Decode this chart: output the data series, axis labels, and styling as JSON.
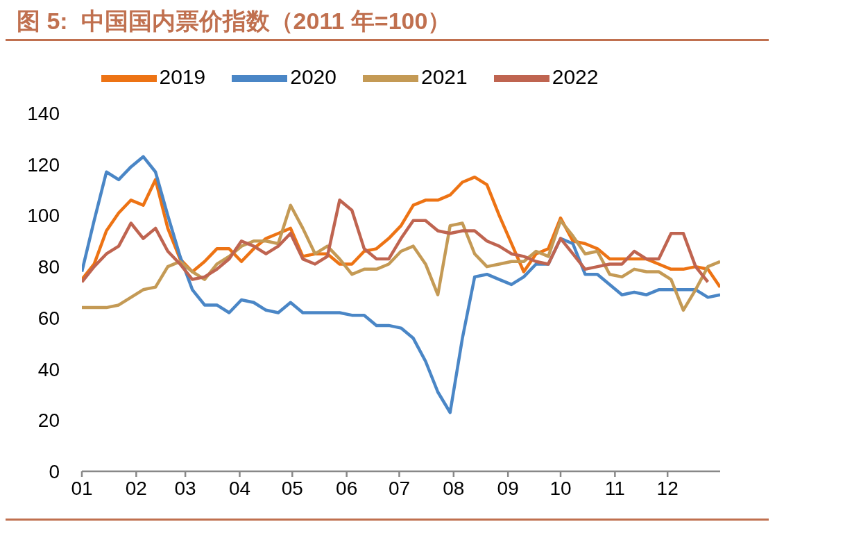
{
  "chart_data": {
    "type": "line",
    "title": "图 5:  中国国内票价指数（2011 年=100）",
    "x": [
      "--01-01",
      "--01-08",
      "--01-15",
      "--01-22",
      "--01-29",
      "--02-05",
      "--02-12",
      "--02-19",
      "--02-26",
      "--03-05",
      "--03-12",
      "--03-19",
      "--03-26",
      "--04-02",
      "--04-09",
      "--04-16",
      "--04-23",
      "--04-30",
      "--05-07",
      "--05-14",
      "--05-21",
      "--05-28",
      "--06-04",
      "--06-11",
      "--06-18",
      "--06-25",
      "--07-02",
      "--07-09",
      "--07-16",
      "--07-23",
      "--07-30",
      "--08-06",
      "--08-13",
      "--08-20",
      "--08-27",
      "--09-03",
      "--09-10",
      "--09-17",
      "--09-24",
      "--10-01",
      "--10-08",
      "--10-15",
      "--10-22",
      "--10-29",
      "--11-05",
      "--11-12",
      "--11-19",
      "--11-26",
      "--12-03",
      "--12-10",
      "--12-17",
      "--12-24",
      "--12-31"
    ],
    "series": [
      {
        "name": "2019",
        "color": "#ed7314",
        "values": [
          75,
          81,
          94,
          101,
          106,
          104,
          114,
          95,
          83,
          78,
          82,
          87,
          87,
          82,
          87,
          91,
          93,
          95,
          84,
          85,
          85,
          81,
          81,
          86,
          87,
          91,
          96,
          104,
          106,
          106,
          108,
          113,
          115,
          112,
          100,
          89,
          78,
          85,
          87,
          99,
          90,
          89,
          87,
          83,
          83,
          83,
          83,
          81,
          79,
          79,
          80,
          79,
          72
        ]
      },
      {
        "name": "2020",
        "color": "#4a86c6",
        "values": [
          78,
          98,
          117,
          114,
          119,
          123,
          117,
          100,
          84,
          71,
          65,
          65,
          62,
          67,
          66,
          63,
          62,
          66,
          62,
          62,
          62,
          62,
          61,
          61,
          57,
          57,
          56,
          52,
          43,
          31,
          23,
          52,
          76,
          77,
          75,
          73,
          76,
          81,
          81,
          91,
          89,
          77,
          77,
          73,
          69,
          70,
          69,
          71,
          71,
          71,
          71,
          68,
          69
        ]
      },
      {
        "name": "2021",
        "color": "#c49a55",
        "values": [
          64,
          64,
          64,
          65,
          68,
          71,
          72,
          80,
          82,
          78,
          75,
          81,
          84,
          88,
          90,
          90,
          89,
          104,
          95,
          85,
          88,
          83,
          77,
          79,
          79,
          81,
          86,
          88,
          81,
          69,
          96,
          97,
          85,
          80,
          81,
          82,
          82,
          86,
          84,
          98,
          92,
          85,
          86,
          77,
          76,
          79,
          78,
          78,
          75,
          63,
          71,
          80,
          82
        ]
      },
      {
        "name": "2022",
        "color": "#bf6450",
        "values": [
          74,
          80,
          85,
          88,
          97,
          91,
          95,
          86,
          81,
          75,
          76,
          79,
          83,
          90,
          88,
          85,
          88,
          93,
          83,
          81,
          84,
          106,
          102,
          87,
          83,
          83,
          91,
          98,
          98,
          94,
          93,
          94,
          94,
          90,
          88,
          85,
          84,
          82,
          81,
          91,
          85,
          79,
          80,
          81,
          81,
          86,
          83,
          83,
          93,
          93,
          80,
          74,
          null
        ]
      }
    ],
    "xlim": [
      "--01-01",
      "--12-31"
    ],
    "xticks": [
      {
        "value": "--01-01",
        "label": "01"
      },
      {
        "value": "--02-01",
        "label": "02"
      },
      {
        "value": "--03-01",
        "label": "03"
      },
      {
        "value": "--04-01",
        "label": "04"
      },
      {
        "value": "--05-01",
        "label": "05"
      },
      {
        "value": "--06-01",
        "label": "06"
      },
      {
        "value": "--07-01",
        "label": "07"
      },
      {
        "value": "--08-01",
        "label": "08"
      },
      {
        "value": "--09-01",
        "label": "09"
      },
      {
        "value": "--10-01",
        "label": "10"
      },
      {
        "value": "--11-01",
        "label": "11"
      },
      {
        "value": "--12-01",
        "label": "12"
      }
    ],
    "ylim": [
      0,
      140
    ],
    "yticks": [
      0,
      20,
      40,
      60,
      80,
      100,
      120,
      140
    ],
    "grid": false,
    "legend": "top",
    "marker": "none",
    "line_style": "solid"
  }
}
